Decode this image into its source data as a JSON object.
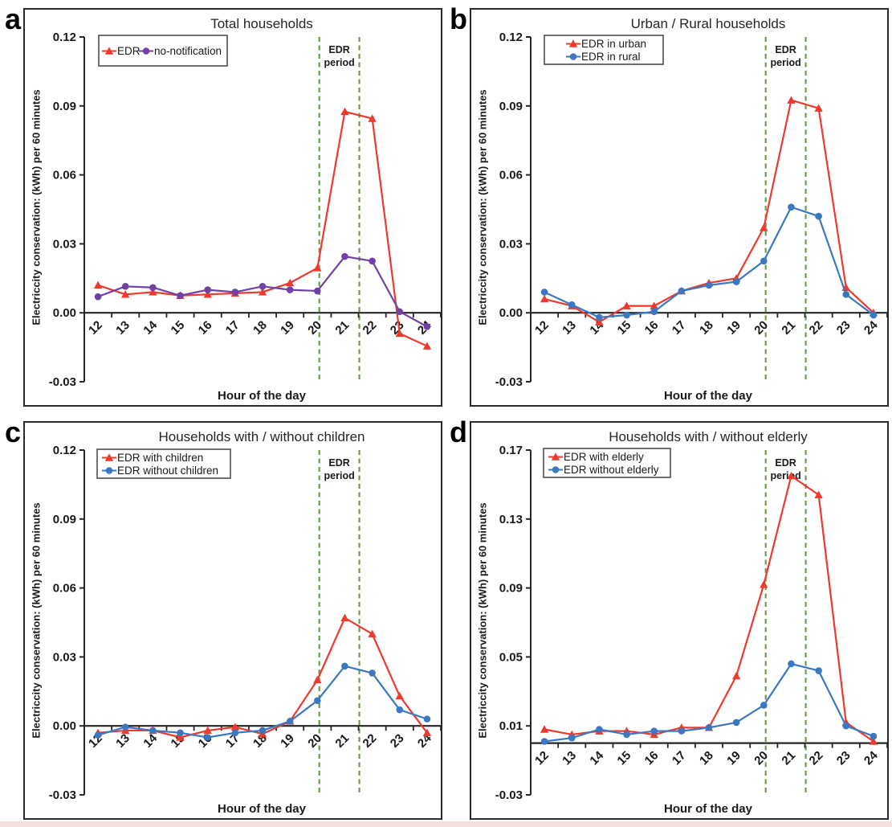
{
  "figure": {
    "ylabel": "Electriccity conservation: (kWh) per 60 minutes",
    "xlabel": "Hour of the day",
    "edr_period_label": [
      "EDR",
      "period"
    ],
    "colors": {
      "edr_red": "#ed3a2d",
      "no_notification_purple": "#7141a5",
      "comparison_blue": "#3a78c2",
      "edr_period_green": "#6e9b52",
      "axis_black": "#262626",
      "bottom_strip_pink": "#f6dfdf"
    }
  },
  "chart_data": [
    {
      "panel": "a",
      "title": "Total households",
      "type": "line",
      "x": [
        12,
        13,
        14,
        15,
        16,
        17,
        18,
        19,
        20,
        21,
        22,
        23,
        24
      ],
      "xlabel": "Hour of the day",
      "ylabel": "Electriccity conservation: (kWh) per 60 minutes",
      "ylim": [
        -0.03,
        0.12
      ],
      "yticks": [
        0.12,
        0.09,
        0.06,
        0.03,
        0.0,
        -0.03
      ],
      "ytick_labels": [
        "0.12",
        "0.09",
        "0.06",
        "0.03",
        "0.00",
        "-0.03"
      ],
      "grid": false,
      "legend_position": "top-left",
      "edr_period_x": [
        20.07,
        21.53
      ],
      "edr_period_label": [
        "EDR",
        "period"
      ],
      "series": [
        {
          "name": "EDR",
          "color": "#ed3a2d",
          "marker": "triangle",
          "values": [
            0.012,
            0.008,
            0.009,
            0.0075,
            0.008,
            0.0085,
            0.009,
            0.013,
            0.0195,
            0.0875,
            0.0845,
            -0.009,
            -0.0145
          ]
        },
        {
          "name": "no-notification",
          "color": "#7141a5",
          "marker": "circle",
          "values": [
            0.007,
            0.0115,
            0.011,
            0.0075,
            0.01,
            0.009,
            0.0115,
            0.01,
            0.0095,
            0.0245,
            0.0225,
            0.0005,
            -0.006
          ]
        }
      ]
    },
    {
      "panel": "b",
      "title": "Urban / Rural households",
      "type": "line",
      "x": [
        12,
        13,
        14,
        15,
        16,
        17,
        18,
        19,
        20,
        21,
        22,
        23,
        24
      ],
      "xlabel": "Hour of the day",
      "ylabel": "Electriccity conservation: (kWh) per 60 minutes",
      "ylim": [
        -0.03,
        0.12
      ],
      "yticks": [
        0.12,
        0.09,
        0.06,
        0.03,
        0.0,
        -0.03
      ],
      "ytick_labels": [
        "0.12",
        "0.09",
        "0.06",
        "0.03",
        "0.00",
        "-0.03"
      ],
      "grid": false,
      "legend_position": "top-left",
      "edr_period_x": [
        20.07,
        21.53
      ],
      "edr_period_label": [
        "EDR",
        "period"
      ],
      "series": [
        {
          "name": "EDR in urban",
          "color": "#ed3a2d",
          "marker": "triangle",
          "values": [
            0.006,
            0.003,
            -0.004,
            0.003,
            0.003,
            0.0095,
            0.013,
            0.015,
            0.037,
            0.0925,
            0.089,
            0.011,
            0.0
          ]
        },
        {
          "name": "EDR in rural",
          "color": "#3a78c2",
          "marker": "circle",
          "values": [
            0.009,
            0.0035,
            -0.002,
            -0.001,
            0.0005,
            0.0095,
            0.012,
            0.0135,
            0.0225,
            0.046,
            0.042,
            0.008,
            -0.001
          ]
        }
      ]
    },
    {
      "panel": "c",
      "title": "Households with / without children",
      "type": "line",
      "x": [
        12,
        13,
        14,
        15,
        16,
        17,
        18,
        19,
        20,
        21,
        22,
        23,
        24
      ],
      "xlabel": "Hour of the day",
      "ylabel": "Electriccity conservation: (kWh) per 60 minutes",
      "ylim": [
        -0.03,
        0.12
      ],
      "yticks": [
        0.12,
        0.09,
        0.06,
        0.03,
        0.0,
        -0.03
      ],
      "ytick_labels": [
        "0.12",
        "0.09",
        "0.06",
        "0.03",
        "0.00",
        "-0.03"
      ],
      "grid": false,
      "legend_position": "top-left",
      "edr_period_x": [
        20.07,
        21.53
      ],
      "edr_period_label": [
        "EDR",
        "period"
      ],
      "series": [
        {
          "name": "EDR with children",
          "color": "#ed3a2d",
          "marker": "triangle",
          "values": [
            -0.003,
            -0.002,
            -0.002,
            -0.005,
            -0.002,
            -0.0005,
            -0.0035,
            0.002,
            0.02,
            0.047,
            0.04,
            0.013,
            -0.003
          ]
        },
        {
          "name": "EDR without children",
          "color": "#3a78c2",
          "marker": "circle",
          "values": [
            -0.004,
            -0.0005,
            -0.002,
            -0.003,
            -0.005,
            -0.003,
            -0.002,
            0.002,
            0.011,
            0.026,
            0.023,
            0.007,
            0.003
          ]
        }
      ]
    },
    {
      "panel": "d",
      "title": "Households with / without elderly",
      "type": "line",
      "x": [
        12,
        13,
        14,
        15,
        16,
        17,
        18,
        19,
        20,
        21,
        22,
        23,
        24
      ],
      "xlabel": "Hour of the day",
      "ylabel": "Electriccity conservation: (kWh) per 60 minutes",
      "ylim": [
        -0.03,
        0.17
      ],
      "yticks": [
        0.17,
        0.13,
        0.09,
        0.05,
        0.01,
        -0.03
      ],
      "ytick_labels": [
        "0.17",
        "0.13",
        "0.09",
        "0.05",
        "0.01",
        "-0.03"
      ],
      "grid": false,
      "legend_position": "top-left",
      "edr_period_x": [
        20.07,
        21.53
      ],
      "edr_period_label": [
        "EDR",
        "period"
      ],
      "series": [
        {
          "name": "EDR with elderly",
          "color": "#ed3a2d",
          "marker": "triangle",
          "values": [
            0.008,
            0.005,
            0.007,
            0.007,
            0.005,
            0.009,
            0.009,
            0.039,
            0.092,
            0.155,
            0.144,
            0.012,
            0.001
          ]
        },
        {
          "name": "EDR without elderly",
          "color": "#3a78c2",
          "marker": "circle",
          "values": [
            0.001,
            0.003,
            0.008,
            0.005,
            0.007,
            0.007,
            0.009,
            0.012,
            0.022,
            0.046,
            0.042,
            0.01,
            0.004
          ]
        }
      ]
    }
  ]
}
